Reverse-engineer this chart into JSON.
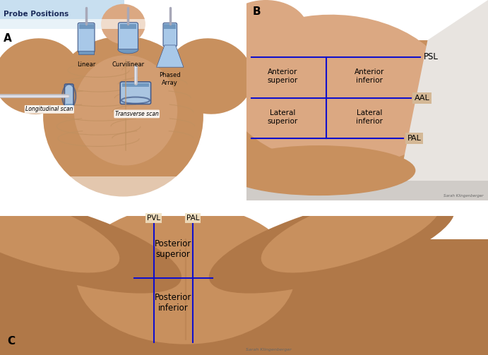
{
  "title_text": "Probe Positions",
  "title_bg": "#c8dff0",
  "label_A": "A",
  "label_B": "B",
  "label_C": "C",
  "probe_labels": [
    "Linear",
    "Curvilinear",
    "Phased\nArray"
  ],
  "scan_labels": [
    "Longitudinal scan",
    "Transverse scan"
  ],
  "panel_B": {
    "PSL": "PSL",
    "AAL": "AAL",
    "PAL": "PAL",
    "q_ant_sup": "Anterior\nsuperior",
    "q_ant_inf": "Anterior\ninferior",
    "q_lat_sup": "Lateral\nsuperior",
    "q_lat_inf": "Lateral\ninferior",
    "label_box_bg": "#d4b896",
    "credit": "Sarah Klingenberger"
  },
  "panel_C": {
    "PVL": "PVL",
    "PAL": "PAL",
    "q_post_sup": "Posterior\nsuperior",
    "q_post_inf": "Posterior\ninferior",
    "credit": "Sarah Klingenberger"
  },
  "line_color": "#1010cc",
  "bg_color": "#ffffff",
  "skin_light": "#dba882",
  "skin_mid": "#c8905e",
  "skin_dark": "#b07848",
  "skin_very_dark": "#a06838",
  "white_gown": "#e8e4e0",
  "probe_blue_light": "#a8c8e8",
  "probe_blue_mid": "#7098c0",
  "probe_blue_dark": "#405888",
  "probe_cable": "#a8a8b8",
  "annotation_bg": "#f0e0c0",
  "annotation_bg_b": "#d4b896"
}
